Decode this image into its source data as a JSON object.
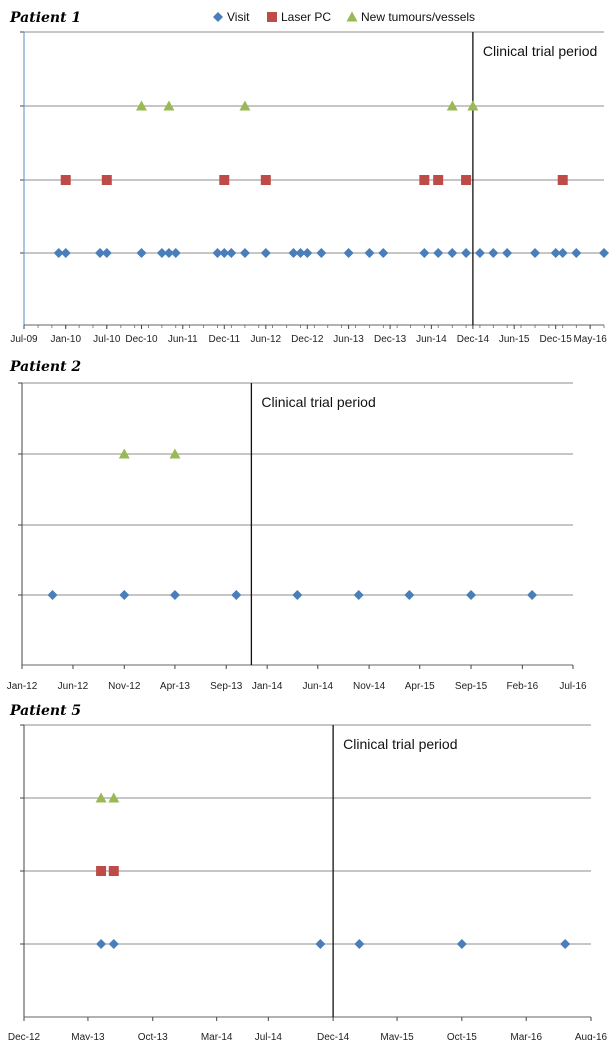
{
  "legend": [
    {
      "name": "Visit",
      "marker": "diamond",
      "color": "#4a7ebb"
    },
    {
      "name": "Laser PC",
      "marker": "square",
      "color": "#be4b48"
    },
    {
      "name": "New tumours/vessels",
      "marker": "triangle",
      "color": "#98b954"
    }
  ],
  "annotation": "Clinical trial period",
  "chart_data": [
    {
      "type": "scatter",
      "title": "Patient 1",
      "x_range": [
        "2009-07-01",
        "2016-07-01"
      ],
      "x_tick_labels": [
        "Jul-09",
        "Jan-10",
        "Jul-10",
        "Dec-10",
        "Jun-11",
        "Dec-11",
        "Jun-12",
        "Dec-12",
        "Jun-13",
        "Dec-13",
        "Jun-14",
        "Dec-14",
        "Jun-15",
        "Dec-15",
        "May-16"
      ],
      "x_ticks": [
        "2009-07-01",
        "2010-01-01",
        "2010-07-01",
        "2010-12-01",
        "2011-06-01",
        "2011-12-01",
        "2012-06-01",
        "2012-12-01",
        "2013-06-01",
        "2013-12-01",
        "2014-06-01",
        "2014-12-01",
        "2015-06-01",
        "2015-12-01",
        "2016-05-01"
      ],
      "trial_start": "2014-12-01",
      "series": [
        {
          "name": "Visit",
          "level": 1,
          "dates": [
            "2009-12-01",
            "2010-01-01",
            "2010-06-01",
            "2010-07-01",
            "2010-12-01",
            "2011-03-01",
            "2011-04-01",
            "2011-05-01",
            "2011-11-01",
            "2011-12-01",
            "2012-01-01",
            "2012-03-01",
            "2012-06-01",
            "2012-10-01",
            "2012-11-01",
            "2012-12-01",
            "2013-02-01",
            "2013-06-01",
            "2013-09-01",
            "2013-11-01",
            "2014-05-01",
            "2014-07-01",
            "2014-09-01",
            "2014-11-01",
            "2015-01-01",
            "2015-03-01",
            "2015-05-01",
            "2015-09-01",
            "2015-12-01",
            "2016-01-01",
            "2016-03-01",
            "2016-07-01"
          ]
        },
        {
          "name": "Laser PC",
          "level": 2,
          "dates": [
            "2010-01-01",
            "2010-07-01",
            "2011-12-01",
            "2012-06-01",
            "2014-05-01",
            "2014-07-01",
            "2014-11-01",
            "2016-01-01"
          ]
        },
        {
          "name": "New tumours/vessels",
          "level": 3,
          "dates": [
            "2010-12-01",
            "2011-04-01",
            "2012-03-01",
            "2014-09-01",
            "2014-12-01"
          ]
        }
      ]
    },
    {
      "type": "scatter",
      "title": "Patient 2",
      "x_range": [
        "2012-01-01",
        "2016-07-01"
      ],
      "x_tick_labels": [
        "Jan-12",
        "Jun-12",
        "Nov-12",
        "Apr-13",
        "Sep-13",
        "Jan-14",
        "Jun-14",
        "Nov-14",
        "Apr-15",
        "Sep-15",
        "Feb-16",
        "Jul-16"
      ],
      "x_ticks": [
        "2012-01-01",
        "2012-06-01",
        "2012-11-01",
        "2013-04-01",
        "2013-09-01",
        "2014-01-01",
        "2014-06-01",
        "2014-11-01",
        "2015-04-01",
        "2015-09-01",
        "2016-02-01",
        "2016-07-01"
      ],
      "trial_start": "2013-11-15",
      "series": [
        {
          "name": "Visit",
          "level": 1,
          "dates": [
            "2012-04-01",
            "2012-11-01",
            "2013-04-01",
            "2013-10-01",
            "2014-04-01",
            "2014-10-01",
            "2015-03-01",
            "2015-09-01",
            "2016-03-01"
          ]
        },
        {
          "name": "New tumours/vessels",
          "level": 3,
          "dates": [
            "2012-11-01",
            "2013-04-01"
          ]
        }
      ]
    },
    {
      "type": "scatter",
      "title": "Patient 5",
      "x_range": [
        "2012-12-01",
        "2016-08-01"
      ],
      "x_tick_labels": [
        "Dec-12",
        "May-13",
        "Oct-13",
        "Mar-14",
        "Jul-14",
        "Dec-14",
        "May-15",
        "Oct-15",
        "Mar-16",
        "Aug-16"
      ],
      "x_ticks": [
        "2012-12-01",
        "2013-05-01",
        "2013-10-01",
        "2014-03-01",
        "2014-07-01",
        "2014-12-01",
        "2015-05-01",
        "2015-10-01",
        "2016-03-01",
        "2016-08-01"
      ],
      "trial_start": "2014-12-01",
      "series": [
        {
          "name": "Visit",
          "level": 1,
          "dates": [
            "2013-06-01",
            "2013-07-01",
            "2014-11-01",
            "2015-02-01",
            "2015-10-01",
            "2016-06-01"
          ]
        },
        {
          "name": "Laser PC",
          "level": 2,
          "dates": [
            "2013-06-01",
            "2013-07-01"
          ]
        },
        {
          "name": "New tumours/vessels",
          "level": 3,
          "dates": [
            "2013-06-01",
            "2013-07-01"
          ]
        }
      ]
    }
  ]
}
